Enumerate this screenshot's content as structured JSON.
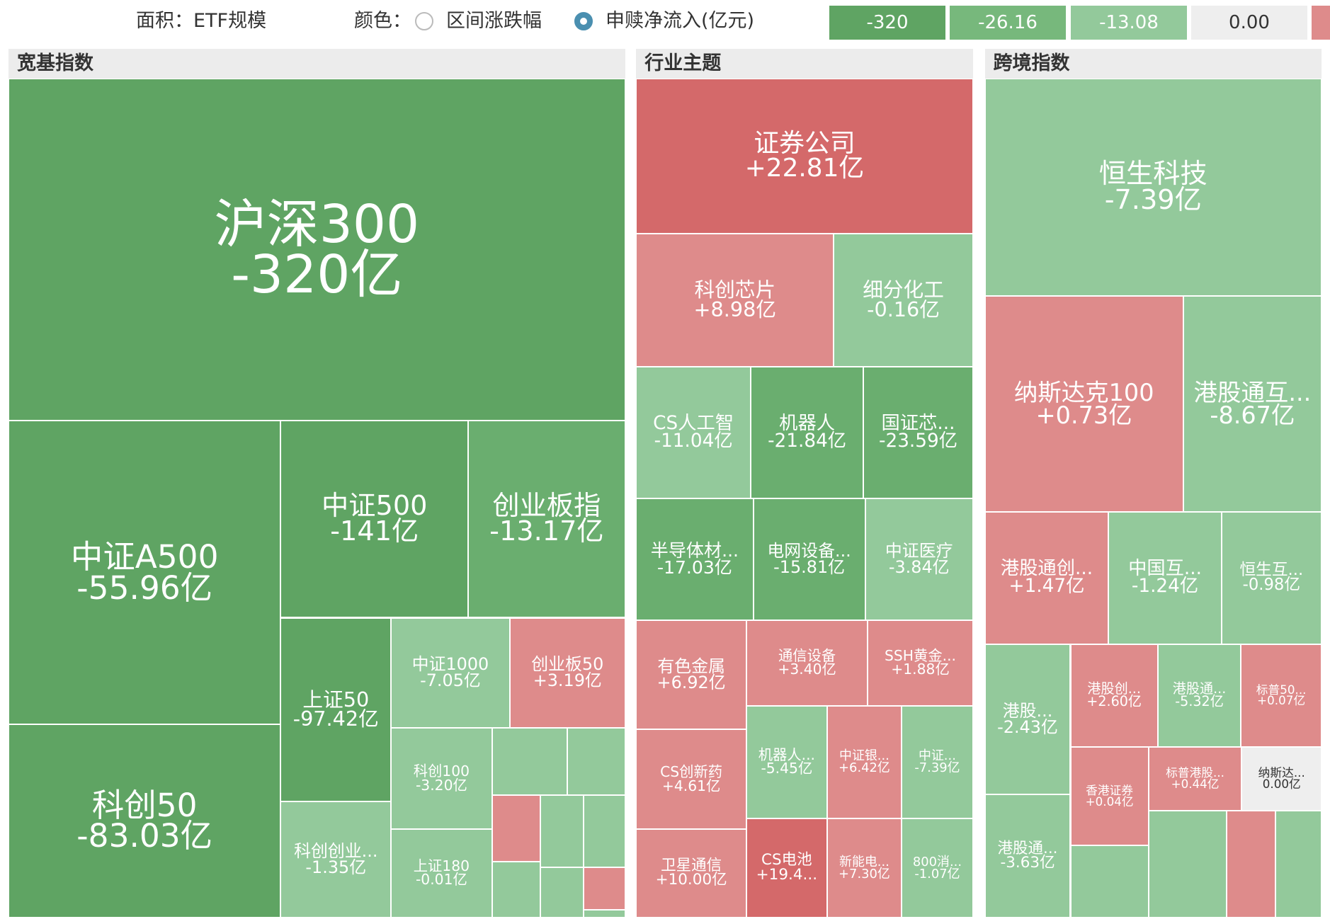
{
  "topbar": {
    "area_label": "面积：ETF规模",
    "color_label": "颜色：",
    "options": [
      "区间涨跌幅",
      "申赎净流入(亿元)"
    ]
  },
  "legend": [
    "-320",
    "-26.16",
    "-13.08",
    "0.00"
  ],
  "panels": [
    {
      "title": "宽基指数",
      "tiles": [
        {
          "label": "沪深300",
          "value": "-320亿"
        },
        {
          "label": "中证A500",
          "value": "-55.96亿"
        },
        {
          "label": "科创50",
          "value": "-83.03亿"
        },
        {
          "label": "中证500",
          "value": "-141亿"
        },
        {
          "label": "创业板指",
          "value": "-13.17亿"
        },
        {
          "label": "上证50",
          "value": "-97.42亿"
        },
        {
          "label": "科创创业...",
          "value": "-1.35亿"
        },
        {
          "label": "中证1000",
          "value": "-7.05亿"
        },
        {
          "label": "创业板50",
          "value": "+3.19亿"
        },
        {
          "label": "科创100",
          "value": "-3.20亿"
        },
        {
          "label": "上证180",
          "value": "-0.01亿"
        }
      ]
    },
    {
      "title": "行业主题",
      "tiles": [
        {
          "label": "证券公司",
          "value": "+22.81亿"
        },
        {
          "label": "科创芯片",
          "value": "+8.98亿"
        },
        {
          "label": "细分化工",
          "value": "-0.16亿"
        },
        {
          "label": "CS人工智",
          "value": "-11.04亿"
        },
        {
          "label": "机器人",
          "value": "-21.84亿"
        },
        {
          "label": "国证芯...",
          "value": "-23.59亿"
        },
        {
          "label": "半导体材...",
          "value": "-17.03亿"
        },
        {
          "label": "电网设备...",
          "value": "-15.81亿"
        },
        {
          "label": "中证医疗",
          "value": "-3.84亿"
        },
        {
          "label": "有色金属",
          "value": "+6.92亿"
        },
        {
          "label": "通信设备",
          "value": "+3.40亿"
        },
        {
          "label": "SSH黄金...",
          "value": "+1.88亿"
        },
        {
          "label": "CS创新药",
          "value": "+4.61亿"
        },
        {
          "label": "机器人...",
          "value": "-5.45亿"
        },
        {
          "label": "中证银...",
          "value": "+6.42亿"
        },
        {
          "label": "中证...",
          "value": "-7.39亿"
        },
        {
          "label": "卫星通信",
          "value": "+10.00亿"
        },
        {
          "label": "CS电池",
          "value": "+19.4..."
        },
        {
          "label": "新能电...",
          "value": "+7.30亿"
        },
        {
          "label": "800消...",
          "value": "-1.07亿"
        }
      ]
    },
    {
      "title": "跨境指数",
      "tiles": [
        {
          "label": "恒生科技",
          "value": "-7.39亿"
        },
        {
          "label": "纳斯达克100",
          "value": "+0.73亿"
        },
        {
          "label": "港股通互...",
          "value": "-8.67亿"
        },
        {
          "label": "港股通创...",
          "value": "+1.47亿"
        },
        {
          "label": "中国互...",
          "value": "-1.24亿"
        },
        {
          "label": "恒生互...",
          "value": "-0.98亿"
        },
        {
          "label": "港股...",
          "value": "-2.43亿"
        },
        {
          "label": "港股创...",
          "value": "+2.60亿"
        },
        {
          "label": "港股通...",
          "value": "-5.32亿"
        },
        {
          "label": "标普50...",
          "value": "+0.07亿"
        },
        {
          "label": "香港证券",
          "value": "+0.04亿"
        },
        {
          "label": "标普港股...",
          "value": "+0.44亿"
        },
        {
          "label": "纳斯达...",
          "value": "0.00亿"
        },
        {
          "label": "港股通...",
          "value": "-3.63亿"
        }
      ]
    }
  ]
}
